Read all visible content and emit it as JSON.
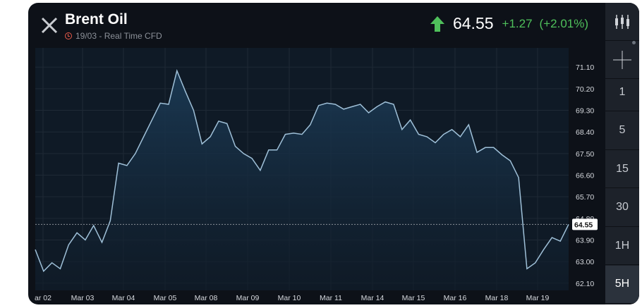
{
  "header": {
    "title": "Brent Oil",
    "subtitle": "19/03 - Real Time CFD",
    "price": "64.55",
    "change": "+1.27",
    "change_pct": "(+2.01%)",
    "up_color": "#4fc05b"
  },
  "sidebar": {
    "chart_type_icon": "candlestick-icon",
    "crosshair_icon": "crosshair-icon",
    "timeframes": [
      "1",
      "5",
      "15",
      "30",
      "1H",
      "5H"
    ],
    "selected": "5H"
  },
  "chart_data": {
    "type": "area",
    "line_color": "#9fc0d8",
    "fill_color": "#1a3248",
    "ylim": [
      61.8,
      71.9
    ],
    "y_ticks": [
      "71.10",
      "70.20",
      "69.30",
      "68.40",
      "67.50",
      "66.60",
      "65.70",
      "64.80",
      "63.90",
      "63.00",
      "62.10"
    ],
    "x_labels": [
      "ar 02",
      "Mar 03",
      "Mar 04",
      "Mar 05",
      "Mar 08",
      "Mar 09",
      "Mar 10",
      "Mar 11",
      "Mar 14",
      "Mar 15",
      "Mar 16",
      "Mar 18",
      "Mar 19"
    ],
    "last_value_label": "64.55",
    "grid": true,
    "values": [
      63.5,
      62.6,
      62.95,
      62.7,
      63.7,
      64.2,
      63.9,
      64.5,
      63.8,
      64.7,
      67.1,
      67.0,
      67.5,
      68.2,
      68.9,
      69.6,
      69.55,
      70.95,
      70.1,
      69.3,
      67.9,
      68.2,
      68.85,
      68.75,
      67.8,
      67.5,
      67.3,
      66.8,
      67.65,
      67.65,
      68.3,
      68.35,
      68.3,
      68.7,
      69.5,
      69.6,
      69.55,
      69.35,
      69.45,
      69.55,
      69.2,
      69.45,
      69.65,
      69.55,
      68.5,
      68.9,
      68.3,
      68.2,
      67.95,
      68.3,
      68.5,
      68.2,
      68.7,
      67.55,
      67.75,
      67.75,
      67.45,
      67.2,
      66.5,
      62.7,
      62.95,
      63.5,
      64.0,
      63.85,
      64.55
    ]
  }
}
